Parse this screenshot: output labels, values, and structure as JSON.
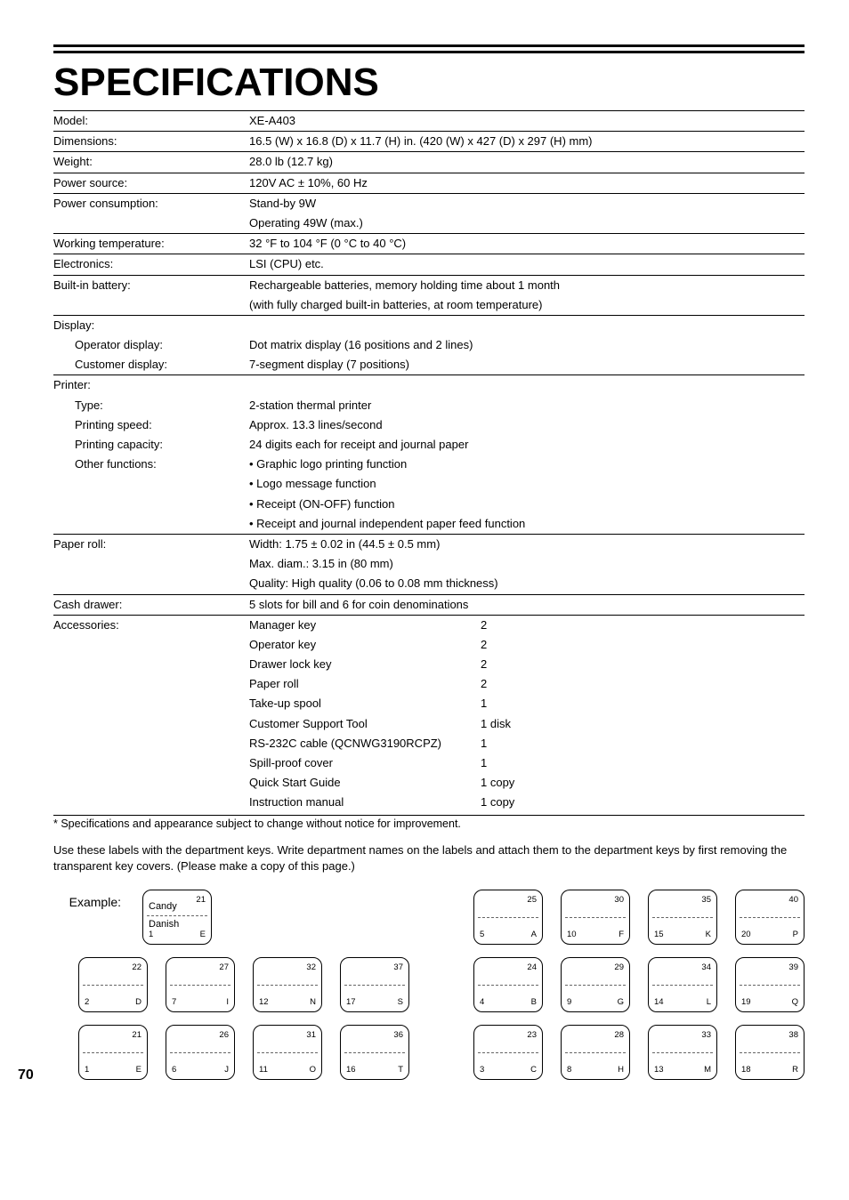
{
  "title": "SPECIFICATIONS",
  "rows": [
    {
      "type": "sep"
    },
    {
      "label": "Model:",
      "value": "XE-A403"
    },
    {
      "type": "sep"
    },
    {
      "label": "Dimensions:",
      "value": "16.5 (W) x 16.8 (D) x 11.7 (H) in. (420 (W) x 427 (D) x 297 (H) mm)"
    },
    {
      "type": "sep"
    },
    {
      "label": "Weight:",
      "value": "28.0 lb (12.7 kg)"
    },
    {
      "type": "sep"
    },
    {
      "label": "Power source:",
      "value": "120V AC ± 10%, 60 Hz"
    },
    {
      "type": "sep"
    },
    {
      "label": "Power consumption:",
      "value": "Stand-by 9W"
    },
    {
      "label": "",
      "value": "Operating 49W (max.)"
    },
    {
      "type": "sep"
    },
    {
      "label": "Working temperature:",
      "value": "32 °F to 104 °F (0 °C to 40 °C)"
    },
    {
      "type": "sep"
    },
    {
      "label": "Electronics:",
      "value": "LSI (CPU) etc."
    },
    {
      "type": "sep"
    },
    {
      "label": "Built-in battery:",
      "value": "Rechargeable batteries, memory holding time about 1 month"
    },
    {
      "label": "",
      "value": "(with fully charged built-in batteries, at room temperature)"
    },
    {
      "type": "sep"
    },
    {
      "label": "Display:",
      "value": ""
    },
    {
      "label": "Operator display:",
      "indent": true,
      "value": "Dot matrix display (16 positions and 2 lines)"
    },
    {
      "label": "Customer display:",
      "indent": true,
      "value": "7-segment display (7 positions)"
    },
    {
      "type": "sep"
    },
    {
      "label": "Printer:",
      "value": ""
    },
    {
      "label": "Type:",
      "indent": true,
      "value": "2-station thermal printer"
    },
    {
      "label": "Printing speed:",
      "indent": true,
      "value": "Approx. 13.3 lines/second"
    },
    {
      "label": "Printing capacity:",
      "indent": true,
      "value": "24 digits each for receipt and journal paper"
    },
    {
      "label": "Other functions:",
      "indent": true,
      "value": "• Graphic logo printing function"
    },
    {
      "label": "",
      "value": "• Logo message function"
    },
    {
      "label": "",
      "value": "• Receipt (ON-OFF) function"
    },
    {
      "label": "",
      "value": "• Receipt and journal independent paper feed function"
    },
    {
      "type": "sep"
    },
    {
      "label": "Paper roll:",
      "value": "Width: 1.75 ± 0.02 in (44.5 ± 0.5 mm)"
    },
    {
      "label": "",
      "value": "Max. diam.: 3.15 in (80 mm)"
    },
    {
      "label": "",
      "value": "Quality: High quality (0.06 to 0.08 mm thickness)"
    },
    {
      "type": "sep"
    },
    {
      "label": "Cash drawer:",
      "value": "5 slots for bill and 6 for coin denominations"
    },
    {
      "type": "sep"
    }
  ],
  "accessories_label": "Accessories:",
  "accessories": [
    {
      "item": "Manager key",
      "qty": "2"
    },
    {
      "item": "Operator key",
      "qty": "2"
    },
    {
      "item": "Drawer lock key",
      "qty": "2"
    },
    {
      "item": "Paper roll",
      "qty": "2"
    },
    {
      "item": "Take-up spool",
      "qty": "1"
    },
    {
      "item": "Customer Support Tool",
      "qty": "1 disk"
    },
    {
      "item": "RS-232C cable (QCNWG3190RCPZ)",
      "qty": "1"
    },
    {
      "item": "Spill-proof cover",
      "qty": "1"
    },
    {
      "item": "Quick Start Guide",
      "qty": "1 copy"
    },
    {
      "item": "Instruction manual",
      "qty": "1 copy"
    }
  ],
  "footnote": "* Specifications and appearance subject to change without notice for improvement.",
  "labels_intro": "Use these labels with the department keys.  Write department names on the labels and attach them to the department keys by first removing the transparent key covers.  (Please make a copy of this page.)",
  "example_text": "Example:",
  "example_key": {
    "tr": "21",
    "mid": "Candy",
    "mid2": "Danish",
    "bl": "1",
    "br": "E"
  },
  "right_top_row": [
    {
      "tr": "25",
      "bl": "5",
      "br": "A"
    },
    {
      "tr": "30",
      "bl": "10",
      "br": "F"
    },
    {
      "tr": "35",
      "bl": "15",
      "br": "K"
    },
    {
      "tr": "40",
      "bl": "20",
      "br": "P"
    }
  ],
  "left_rows": [
    [
      {
        "tr": "22",
        "bl": "2",
        "br": "D"
      },
      {
        "tr": "27",
        "bl": "7",
        "br": "I"
      },
      {
        "tr": "32",
        "bl": "12",
        "br": "N"
      },
      {
        "tr": "37",
        "bl": "17",
        "br": "S"
      }
    ],
    [
      {
        "tr": "21",
        "bl": "1",
        "br": "E"
      },
      {
        "tr": "26",
        "bl": "6",
        "br": "J"
      },
      {
        "tr": "31",
        "bl": "11",
        "br": "O"
      },
      {
        "tr": "36",
        "bl": "16",
        "br": "T"
      }
    ]
  ],
  "right_rows": [
    [
      {
        "tr": "24",
        "bl": "4",
        "br": "B"
      },
      {
        "tr": "29",
        "bl": "9",
        "br": "G"
      },
      {
        "tr": "34",
        "bl": "14",
        "br": "L"
      },
      {
        "tr": "39",
        "bl": "19",
        "br": "Q"
      }
    ],
    [
      {
        "tr": "23",
        "bl": "3",
        "br": "C"
      },
      {
        "tr": "28",
        "bl": "8",
        "br": "H"
      },
      {
        "tr": "33",
        "bl": "13",
        "br": "M"
      },
      {
        "tr": "38",
        "bl": "18",
        "br": "R"
      }
    ]
  ],
  "page_number": "70"
}
